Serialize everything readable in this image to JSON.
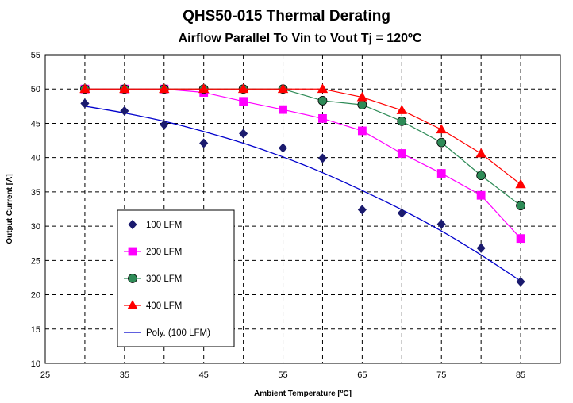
{
  "chart_data": {
    "type": "scatter",
    "title": "QHS50-015 Thermal Derating",
    "subtitle": "Airflow Parallel To Vin to Vout Tj = 120ºC",
    "xlabel": "Ambient Temperature [ºC]",
    "ylabel": "Output Current [A]",
    "xlim": [
      25,
      90
    ],
    "ylim": [
      10,
      55
    ],
    "xticks": [
      25,
      35,
      45,
      55,
      65,
      75,
      85
    ],
    "yticks": [
      10,
      15,
      20,
      25,
      30,
      35,
      40,
      45,
      50,
      55
    ],
    "grid": true,
    "legend_position": "lower-left",
    "series": [
      {
        "name": "100 LFM",
        "marker": "diamond",
        "color": "#1a1a6e",
        "line": false,
        "x": [
          30,
          35,
          40,
          45,
          50,
          55,
          60,
          65,
          70,
          75,
          80,
          85
        ],
        "y": [
          47.9,
          46.8,
          44.8,
          42.1,
          43.5,
          41.4,
          39.9,
          32.4,
          31.9,
          30.3,
          26.8,
          21.9
        ]
      },
      {
        "name": "200 LFM",
        "marker": "square",
        "color": "#ff00ff",
        "line": true,
        "x": [
          30,
          35,
          40,
          45,
          50,
          55,
          60,
          65,
          70,
          75,
          80,
          85
        ],
        "y": [
          50.0,
          50.0,
          50.0,
          49.5,
          48.2,
          47.0,
          45.7,
          43.9,
          40.6,
          37.7,
          34.5,
          28.2
        ]
      },
      {
        "name": "300 LFM",
        "marker": "circle",
        "color": "#2e8b57",
        "line": true,
        "x": [
          30,
          35,
          40,
          45,
          50,
          55,
          60,
          65,
          70,
          75,
          80,
          85
        ],
        "y": [
          50.0,
          50.0,
          50.0,
          50.0,
          50.0,
          50.0,
          48.3,
          47.7,
          45.3,
          42.2,
          37.4,
          33.0
        ]
      },
      {
        "name": "400 LFM",
        "marker": "triangle",
        "color": "#ff0000",
        "line": true,
        "x": [
          30,
          35,
          40,
          45,
          50,
          55,
          60,
          65,
          70,
          75,
          80,
          85
        ],
        "y": [
          50.0,
          50.0,
          50.0,
          50.0,
          50.0,
          50.0,
          50.0,
          48.8,
          46.9,
          44.1,
          40.6,
          36.1
        ]
      },
      {
        "name": "Poly. (100 LFM)",
        "marker": "none",
        "color": "#0000cc",
        "line": true,
        "x": [
          30,
          35,
          40,
          45,
          50,
          55,
          60,
          65,
          70,
          75,
          80,
          85
        ],
        "y": [
          47.5,
          46.5,
          45.3,
          43.8,
          42.1,
          40.1,
          37.8,
          35.2,
          32.4,
          29.3,
          25.8,
          22.0
        ]
      }
    ]
  }
}
